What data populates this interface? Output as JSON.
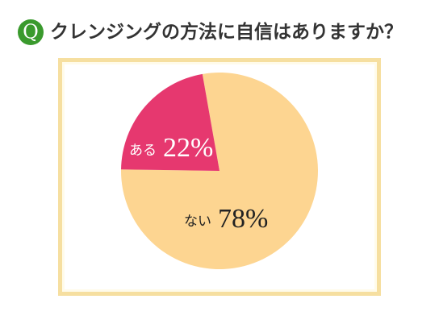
{
  "chart_data": {
    "type": "pie",
    "badge": "Q",
    "title": "クレンジングの方法に自信はありますか？",
    "categories": [
      "ない",
      "ある"
    ],
    "values": [
      78,
      22
    ],
    "value_labels": [
      "78%",
      "22%"
    ],
    "colors": [
      "#fdd591",
      "#e6386f"
    ],
    "label_colors": [
      "#222222",
      "#ffffff"
    ]
  }
}
